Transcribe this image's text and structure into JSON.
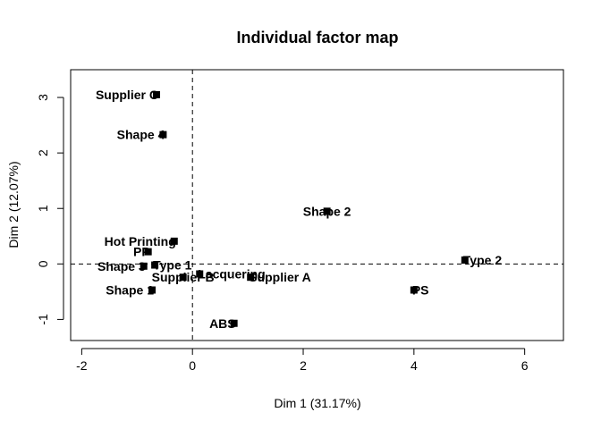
{
  "chart_data": {
    "type": "scatter",
    "title": "Individual factor map",
    "xlabel": "Dim 1 (31.17%)",
    "ylabel": "Dim 2 (12.07%)",
    "xlim": [
      -2.2,
      6.7
    ],
    "ylim": [
      -1.38,
      3.5
    ],
    "xticks": [
      -2,
      0,
      2,
      4,
      6
    ],
    "yticks": [
      -1,
      0,
      1,
      2,
      3
    ],
    "reference_lines": {
      "x": 0,
      "y": 0,
      "style": "dashed"
    },
    "grid": false,
    "marker": "square",
    "points": [
      {
        "label": "Supplier C",
        "x": -0.65,
        "y": 3.05,
        "anchor": "end"
      },
      {
        "label": "Shape 4",
        "x": -0.53,
        "y": 2.33,
        "anchor": "end"
      },
      {
        "label": "Shape 2",
        "x": 2.43,
        "y": 0.95,
        "anchor": "middle"
      },
      {
        "label": "Hot Printing",
        "x": -0.33,
        "y": 0.41,
        "anchor": "end"
      },
      {
        "label": "PP",
        "x": -0.8,
        "y": 0.22,
        "anchor": "end"
      },
      {
        "label": "Type 1",
        "x": -0.68,
        "y": -0.02,
        "anchor": "start"
      },
      {
        "label": "Shape 3",
        "x": -0.88,
        "y": -0.04,
        "anchor": "end"
      },
      {
        "label": "Supplier B",
        "x": -0.17,
        "y": -0.24,
        "anchor": "middle"
      },
      {
        "label": "Lacquering",
        "x": 0.13,
        "y": -0.18,
        "anchor": "start"
      },
      {
        "label": "Supplier A",
        "x": 1.05,
        "y": -0.24,
        "anchor": "start"
      },
      {
        "label": "Shape 1",
        "x": -0.73,
        "y": -0.47,
        "anchor": "end"
      },
      {
        "label": "ABS",
        "x": 0.75,
        "y": -1.07,
        "anchor": "end"
      },
      {
        "label": "Type 2",
        "x": 4.92,
        "y": 0.07,
        "anchor": "start"
      },
      {
        "label": "PS",
        "x": 4.0,
        "y": -0.47,
        "anchor": "start"
      }
    ]
  }
}
